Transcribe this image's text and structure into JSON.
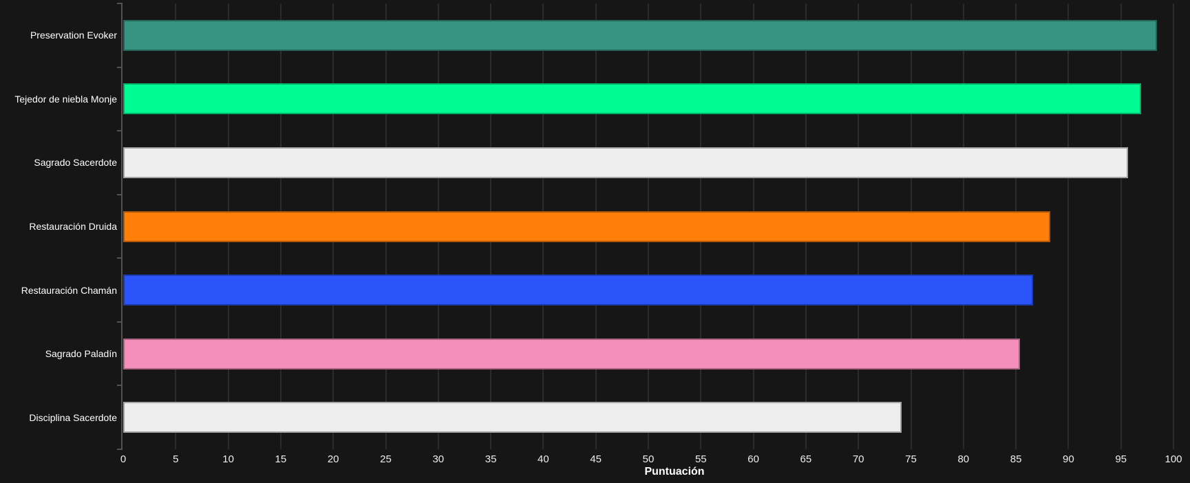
{
  "chart_data": {
    "type": "bar",
    "orientation": "horizontal",
    "title": "",
    "xlabel": "Puntuación",
    "ylabel": "",
    "xlim": [
      0,
      100
    ],
    "xticks": [
      0,
      5,
      10,
      15,
      20,
      25,
      30,
      35,
      40,
      45,
      50,
      55,
      60,
      65,
      70,
      75,
      80,
      85,
      90,
      95,
      100
    ],
    "grid": true,
    "legend": false,
    "categories": [
      "Preservation Evoker",
      "Tejedor de niebla Monje",
      "Sagrado Sacerdote",
      "Restauración Druida",
      "Restauración Chamán",
      "Sagrado Paladín",
      "Disciplina Sacerdote"
    ],
    "values": [
      98.4,
      96.9,
      95.7,
      88.3,
      86.6,
      85.4,
      74.1
    ],
    "bar_colors": [
      "#349480",
      "#00FB94",
      "#EDEDED",
      "#FF7F0A",
      "#2B55FA",
      "#F48EBA",
      "#EDEDED"
    ]
  },
  "colors": {
    "background": "#161616",
    "gridline": "#2b2b2b",
    "axis": "#525252",
    "text": "#ffffff"
  }
}
